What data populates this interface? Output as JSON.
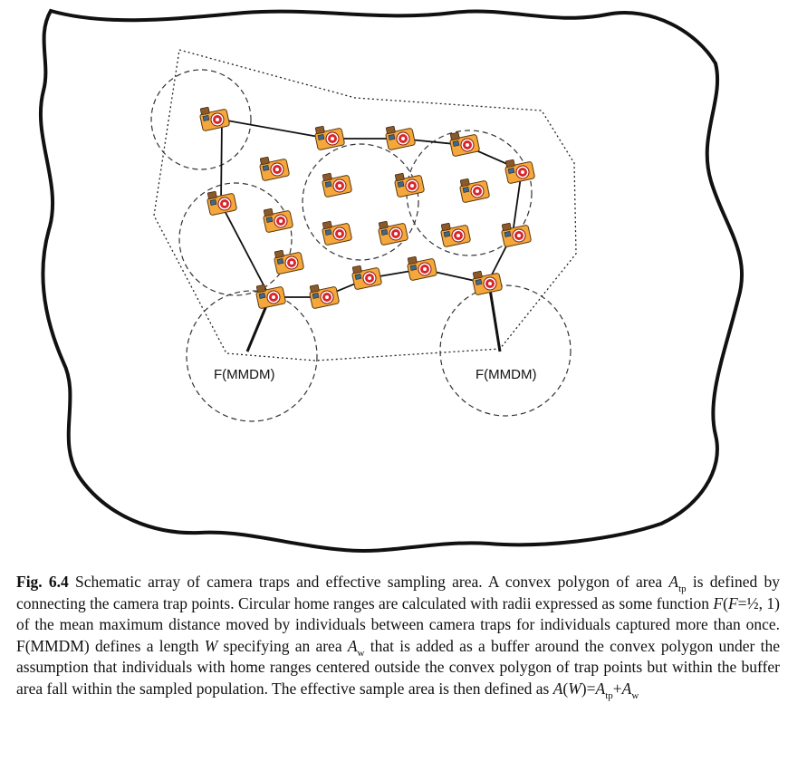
{
  "diagram": {
    "buffer_label_left": "F(MMDM)",
    "buffer_label_right": "F(MMDM)",
    "camera_icon": "camera-trap-icon",
    "colors": {
      "outline": "#111111",
      "camera_body": "#f4a73a",
      "camera_lens": "#d9262b",
      "camera_top": "#e8c84a"
    }
  },
  "caption": {
    "fig_label": "Fig. 6.4",
    "t1": "  Schematic array of camera traps and effective sampling area. A convex polygon of area ",
    "A": "A",
    "tp": "tp",
    "t2": " is defined by connecting the camera trap points. Circular home ranges are calculated with radii expressed as some function ",
    "F1": "F",
    "t3": "(",
    "F2": "F",
    "t4": "=½, 1) of the mean maximum distance moved by individuals between camera traps for individuals captured more than once. F(MMDM) defines a length ",
    "W1": "W",
    "t5": " specifying an area ",
    "A2": "A",
    "w": "w",
    "t6": " that is added as a buffer around the convex polygon under the assumption that individuals with home ranges centered outside the convex polygon of trap points but within the buffer area fall within the sampled population. The effective sample area is then defined as ",
    "AW": "A",
    "t7": "(",
    "W2": "W",
    "t8": ")=",
    "A3": "A",
    "tp2": "tp",
    "t9": "+",
    "A4": "A",
    "w2": "w"
  }
}
